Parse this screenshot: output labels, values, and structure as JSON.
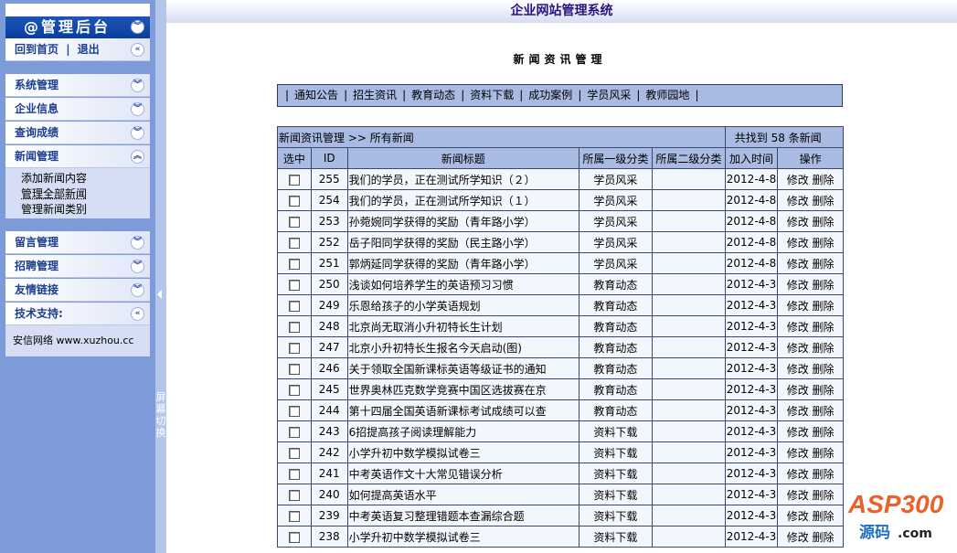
{
  "sidebar": {
    "brand": "@管理后台",
    "home": "回到首页",
    "logout": "退出",
    "sep": "|",
    "sections": [
      {
        "label": "系统管理"
      },
      {
        "label": "企业信息"
      },
      {
        "label": "查询成绩"
      },
      {
        "label": "新闻管理"
      },
      {
        "label": "留言管理"
      },
      {
        "label": "招聘管理"
      },
      {
        "label": "友情链接"
      },
      {
        "label": "技术支持:"
      }
    ],
    "news_items": [
      "添加新闻内容",
      "管理全部新闻",
      "管理新闻类别"
    ],
    "support_text": "安信网络 www.xuzhou.cc"
  },
  "splitter": {
    "label": "屏幕切换"
  },
  "header": {
    "title": "企业网站管理系统"
  },
  "main": {
    "page_title": "新闻资讯管理",
    "nav": [
      "通知公告",
      "招生资讯",
      "教育动态",
      "资料下载",
      "成功案例",
      "学员风采",
      "教师园地"
    ],
    "breadcrumb": "新闻资讯管理 >> 所有新闻",
    "count": "共找到 58 条新闻",
    "columns": [
      "选中",
      "ID",
      "新闻标题",
      "所属一级分类",
      "所属二级分类",
      "加入时间",
      "操作"
    ],
    "edit": "修改",
    "delete": "删除",
    "rows": [
      {
        "id": "255",
        "title": "我们的学员，正在测试所学知识（２）",
        "cat": "学员风采",
        "date": "2012-4-8"
      },
      {
        "id": "254",
        "title": "我们的学员，正在测试所学知识（１）",
        "cat": "学员风采",
        "date": "2012-4-8"
      },
      {
        "id": "253",
        "title": "孙菀婉同学获得的奖励（青年路小学）",
        "cat": "学员风采",
        "date": "2012-4-8"
      },
      {
        "id": "252",
        "title": "岳子阳同学获得的奖励（民主路小学）",
        "cat": "学员风采",
        "date": "2012-4-8"
      },
      {
        "id": "251",
        "title": "郭炳延同学获得的奖励（青年路小学）",
        "cat": "学员风采",
        "date": "2012-4-8"
      },
      {
        "id": "250",
        "title": "浅谈如何培养学生的英语预习习惯",
        "cat": "教育动态",
        "date": "2012-4-3"
      },
      {
        "id": "249",
        "title": "乐恩给孩子的小学英语规划",
        "cat": "教育动态",
        "date": "2012-4-3"
      },
      {
        "id": "248",
        "title": "北京尚无取消小升初特长生计划",
        "cat": "教育动态",
        "date": "2012-4-3"
      },
      {
        "id": "247",
        "title": "北京小升初特长生报名今天启动(图)",
        "cat": "教育动态",
        "date": "2012-4-3"
      },
      {
        "id": "246",
        "title": "关于领取全国新课标英语等级证书的通知",
        "cat": "教育动态",
        "date": "2012-4-3"
      },
      {
        "id": "245",
        "title": "世界奥林匹克数学竞赛中国区选拔赛在京",
        "cat": "教育动态",
        "date": "2012-4-3"
      },
      {
        "id": "244",
        "title": "第十四届全国英语新课标考试成绩可以查",
        "cat": "教育动态",
        "date": "2012-4-3"
      },
      {
        "id": "243",
        "title": "6招提高孩子阅读理解能力",
        "cat": "资料下载",
        "date": "2012-4-3"
      },
      {
        "id": "242",
        "title": "小学升初中数学模拟试卷三",
        "cat": "资料下载",
        "date": "2012-4-3"
      },
      {
        "id": "241",
        "title": "中考英语作文十大常见错误分析",
        "cat": "资料下载",
        "date": "2012-4-3"
      },
      {
        "id": "240",
        "title": "如何提高英语水平",
        "cat": "资料下载",
        "date": "2012-4-3"
      },
      {
        "id": "239",
        "title": "中考英语复习整理错题本查漏综合题",
        "cat": "资料下载",
        "date": "2012-4-3"
      },
      {
        "id": "238",
        "title": "小学升初中数学模拟试卷三",
        "cat": "资料下载",
        "date": "2012-4-3"
      }
    ]
  },
  "watermark": {
    "text": "ASP300",
    "cn": "源码",
    "domain": ".com"
  }
}
